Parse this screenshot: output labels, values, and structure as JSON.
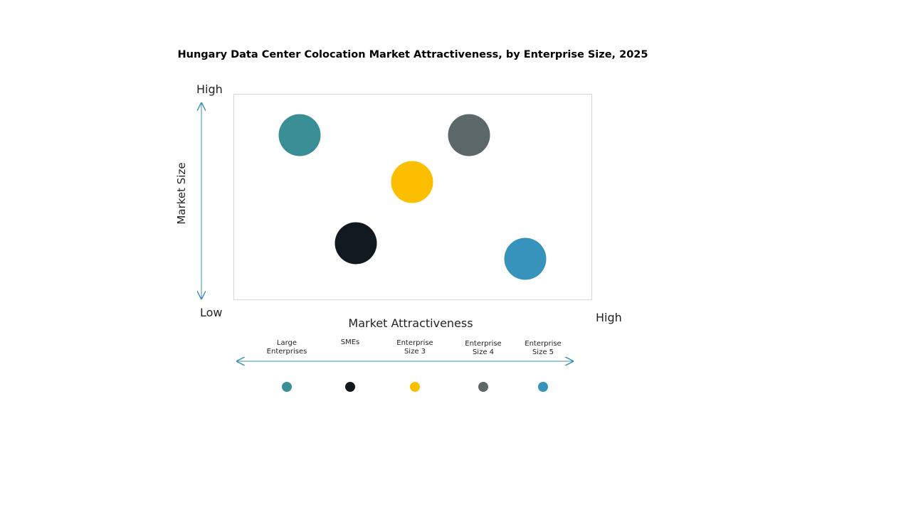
{
  "title": "Hungary Data Center Colocation Market Attractiveness,  by Enterprise Size, 2025",
  "y_axis": {
    "label": "Market Size",
    "high": "High",
    "low": "Low"
  },
  "x_axis": {
    "label": "Market Attractiveness",
    "high": "High"
  },
  "legend": [
    {
      "name": "Large Enterprises",
      "color": "#3a8f96"
    },
    {
      "name": "SMEs",
      "color": "#111820"
    },
    {
      "name": "Enterprise Size 3",
      "color": "#fbbf00"
    },
    {
      "name": "Enterprise Size 4",
      "color": "#5b6769"
    },
    {
      "name": "Enterprise Size 5",
      "color": "#3793bb"
    }
  ]
}
